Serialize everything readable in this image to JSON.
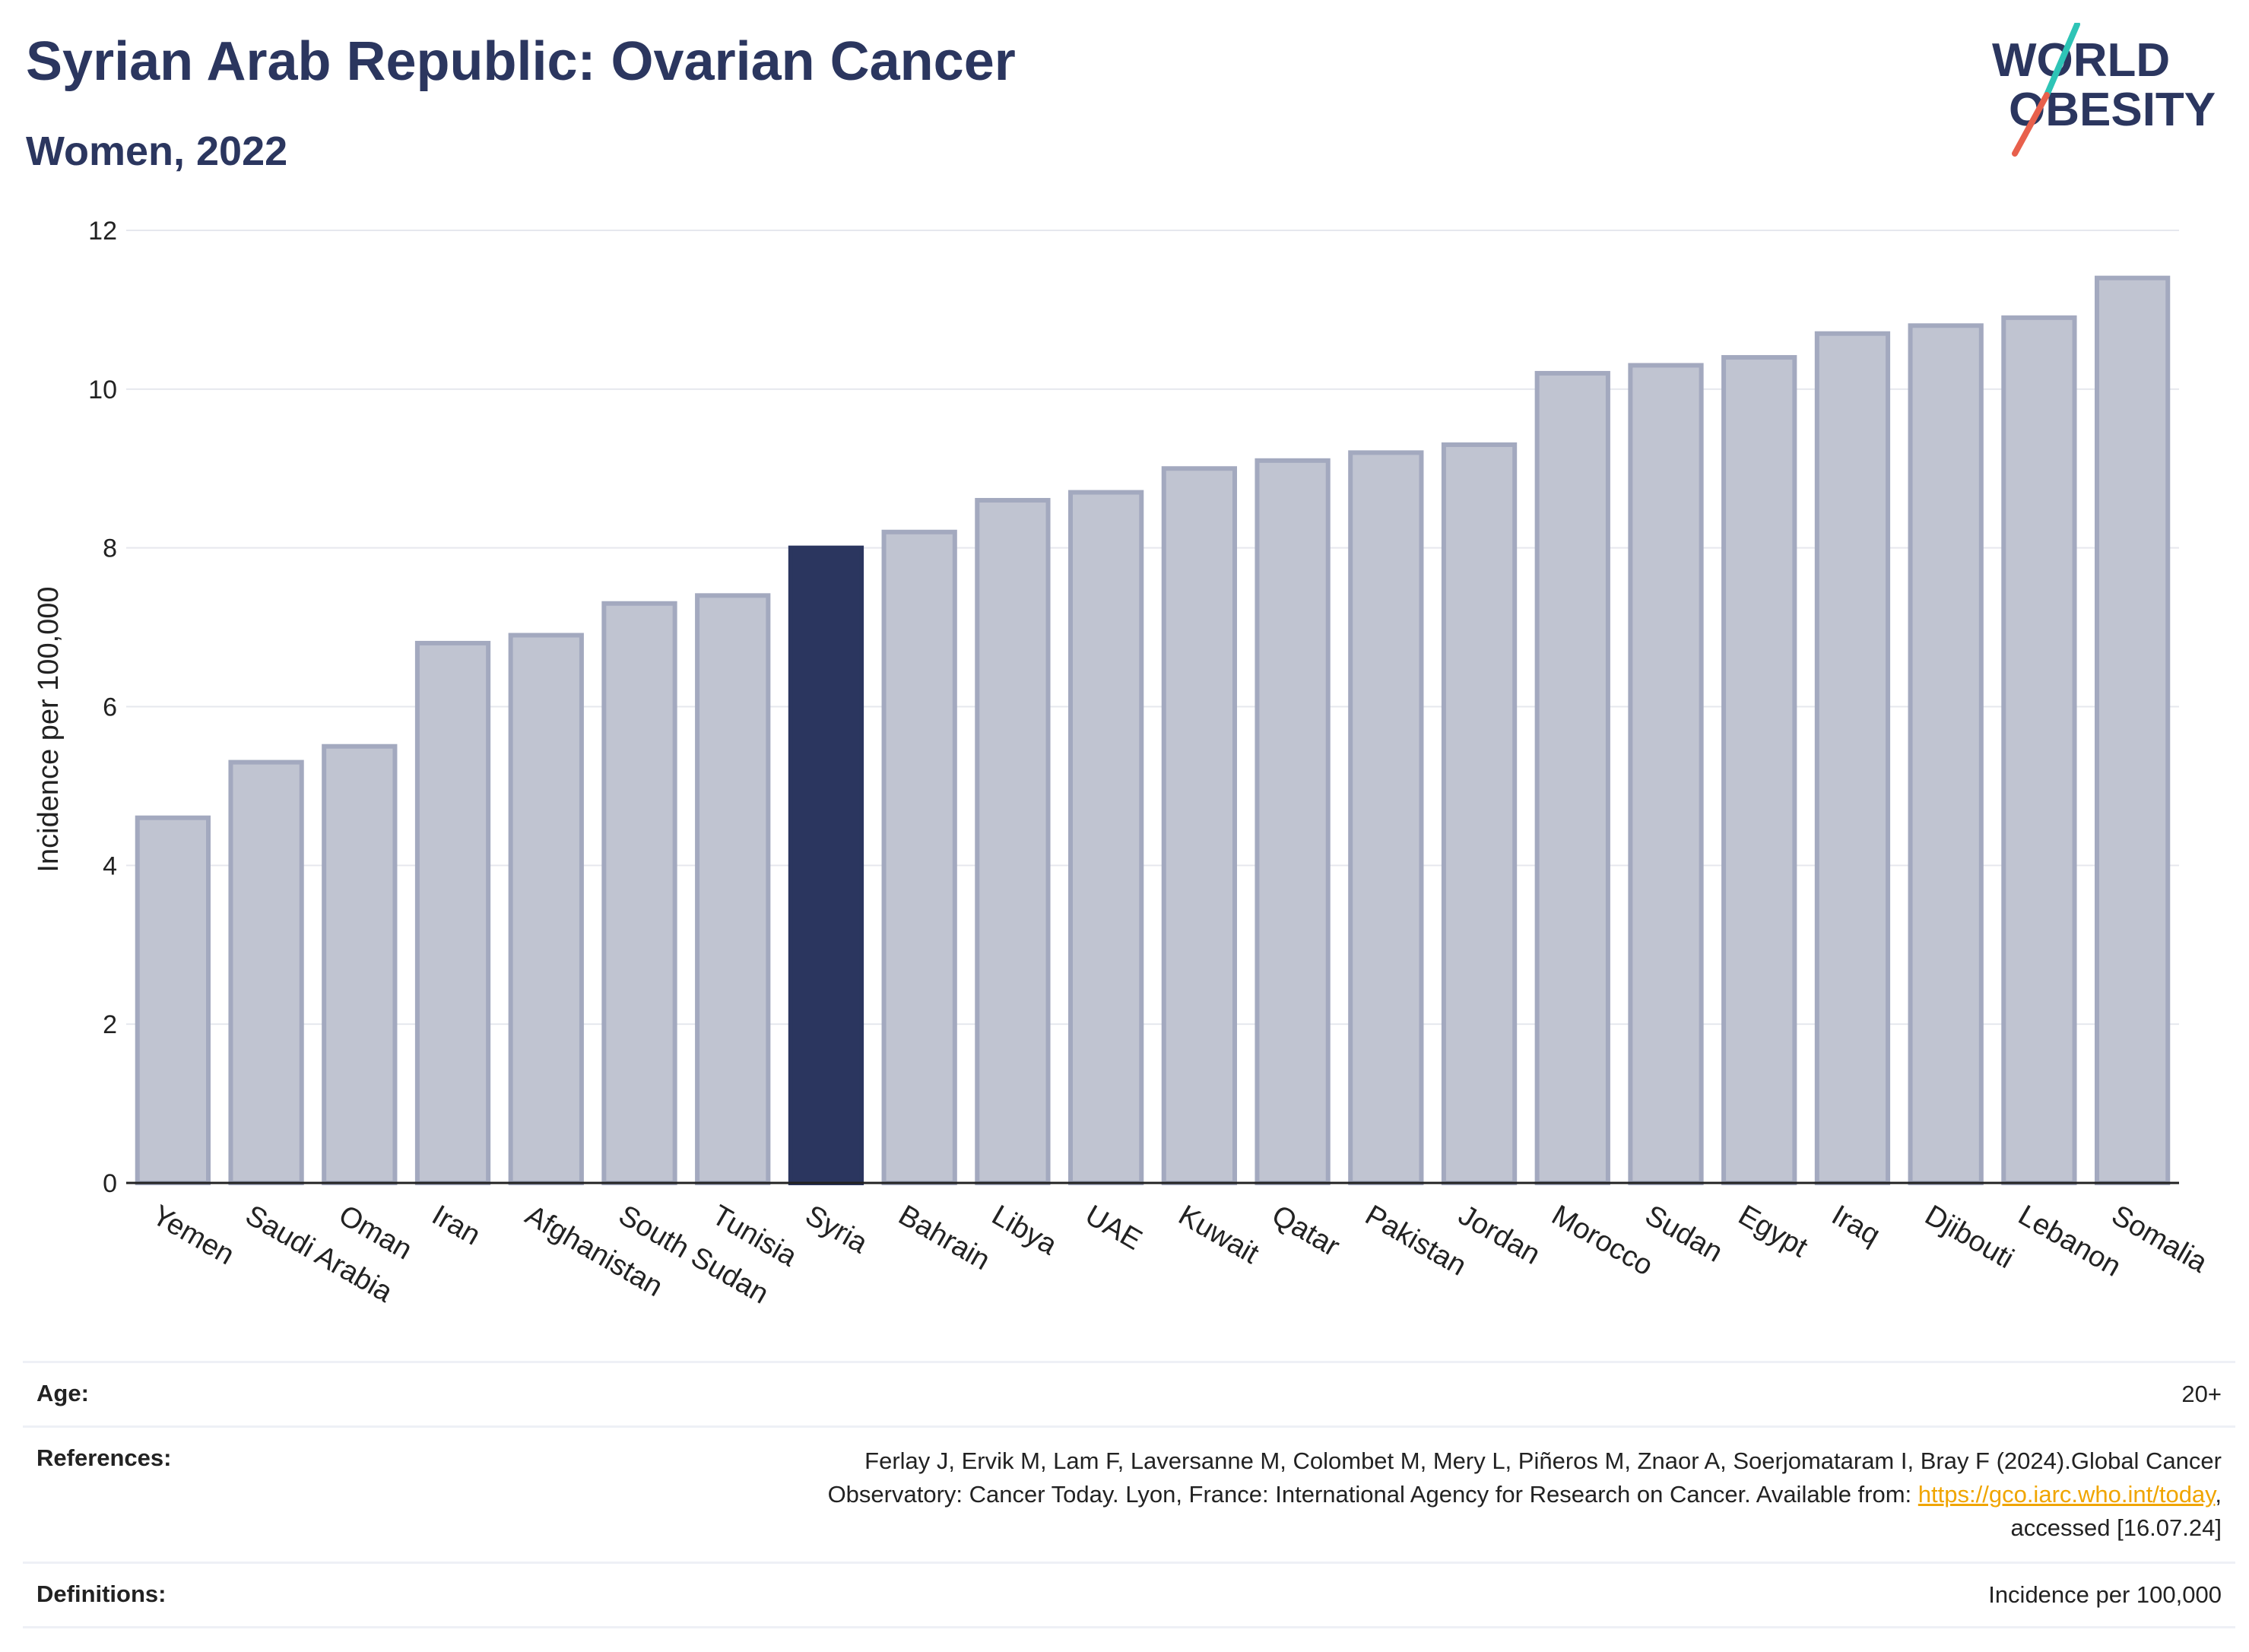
{
  "header": {
    "title": "Syrian Arab Republic: Ovarian Cancer",
    "subtitle": "Women, 2022"
  },
  "logo": {
    "line1": "WORLD",
    "line2": "OBESITY",
    "text_color": "#2b365f",
    "accent_teal": "#2ec4b6",
    "accent_coral": "#e8604c"
  },
  "chart_data": {
    "type": "bar",
    "title": "",
    "xlabel": "",
    "ylabel": "Incidence per 100,000",
    "ylim": [
      0,
      12
    ],
    "yticks": [
      0,
      2,
      4,
      6,
      8,
      10,
      12
    ],
    "grid": true,
    "highlight": "Syria",
    "colors": {
      "bar": "#c0c4d1",
      "bar_border": "#a3a9bf",
      "highlight": "#2b365f"
    },
    "categories": [
      "Yemen",
      "Saudi Arabia",
      "Oman",
      "Iran",
      "Afghanistan",
      "South Sudan",
      "Tunisia",
      "Syria",
      "Bahrain",
      "Libya",
      "UAE",
      "Kuwait",
      "Qatar",
      "Pakistan",
      "Jordan",
      "Morocco",
      "Sudan",
      "Egypt",
      "Iraq",
      "Djibouti",
      "Lebanon",
      "Somalia"
    ],
    "values": [
      4.6,
      5.3,
      5.5,
      6.8,
      6.9,
      7.3,
      7.4,
      8.0,
      8.2,
      8.6,
      8.7,
      9.0,
      9.1,
      9.2,
      9.3,
      10.2,
      10.3,
      10.4,
      10.7,
      10.8,
      10.9,
      11.4
    ]
  },
  "info": {
    "age_label": "Age:",
    "age_value": "20+",
    "references_label": "References:",
    "references_line1": "Ferlay J, Ervik M, Lam F, Laversanne M, Colombet M, Mery L, Piñeros M, Znaor A, Soerjomataram I, Bray F (2024).Global Cancer",
    "references_line2_prefix": "Observatory: Cancer Today. Lyon, France: International Agency for Research on Cancer. Available from: ",
    "references_link": "https://gco.iarc.who.int/today",
    "references_line2_suffix": ",",
    "references_line3": "accessed [16.07.24]",
    "definitions_label": "Definitions:",
    "definitions_value": "Incidence per 100,000"
  }
}
